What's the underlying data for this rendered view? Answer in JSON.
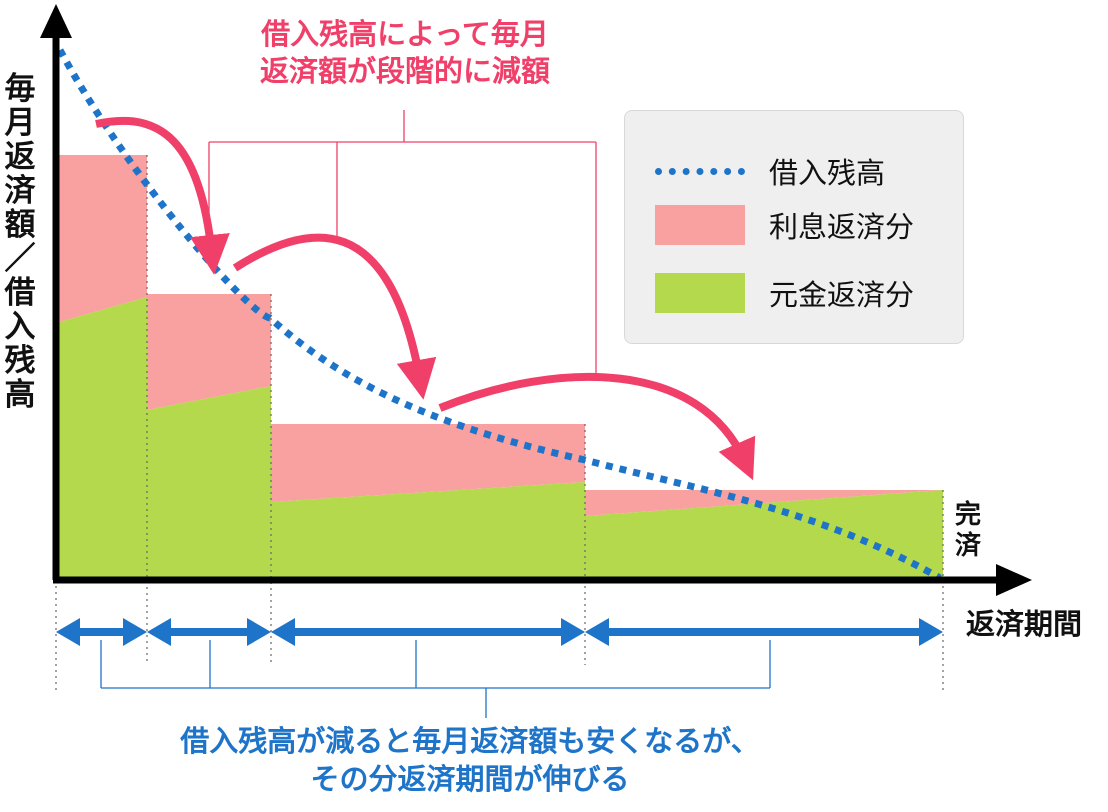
{
  "y_axis_label": [
    "毎",
    "月",
    "返",
    "済",
    "額",
    "／",
    "借",
    "入",
    "残",
    "高"
  ],
  "x_axis_label": "返済期間",
  "end_label": [
    "完",
    "済"
  ],
  "top_annotation": [
    "借入残高によって毎月",
    "返済額が段階的に減額"
  ],
  "bottom_annotation": [
    "借入残高が減ると毎月返済額も安くなるが、",
    "その分返済期間が伸びる"
  ],
  "legend": [
    {
      "label": "借入残高",
      "kind": "dotted-line",
      "color": "#1e74c8"
    },
    {
      "label": "利息返済分",
      "kind": "box",
      "color": "#f9a0a0"
    },
    {
      "label": "元金返済分",
      "kind": "box",
      "color": "#b4d94c"
    }
  ],
  "colors": {
    "axis": "#000000",
    "interest": "#f9a0a0",
    "principal": "#b4d94c",
    "balance": "#1e74c8",
    "accent_arrow": "#f0406a",
    "annotation_bracket_top": "#f0406a",
    "annotation_bracket_bottom": "#1e74c8"
  }
}
